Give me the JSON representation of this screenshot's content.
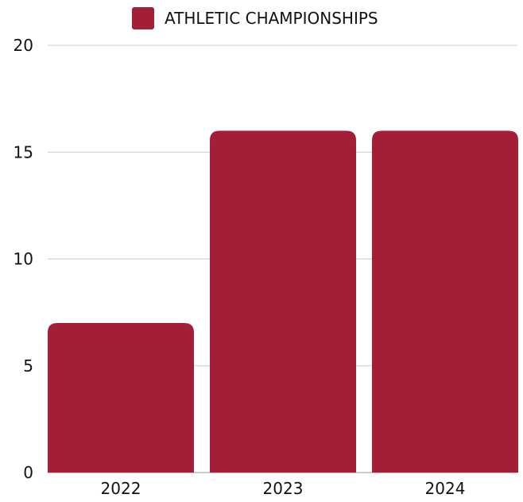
{
  "chart_data": {
    "type": "bar",
    "categories": [
      "2022",
      "2023",
      "2024"
    ],
    "series": [
      {
        "name": "ATHLETIC CHAMPIONSHIPS",
        "values": [
          7,
          16,
          16
        ]
      }
    ],
    "ylim": [
      0,
      20
    ],
    "yticks": [
      "0",
      "5",
      "10",
      "15",
      "20"
    ],
    "grid": true,
    "legend_position": "top-center",
    "colors": {
      "bar": "#a31f37",
      "grid": "#cccccc",
      "text": "#111111"
    }
  }
}
